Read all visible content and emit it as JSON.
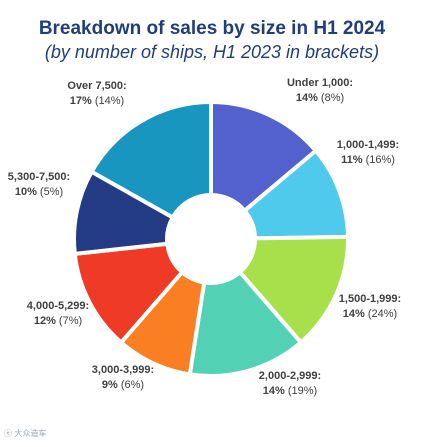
{
  "header": {
    "title": "Breakdown of sales by size in H1 2024",
    "subtitle": "(by number of ships, H1 2023 in brackets)"
  },
  "chart_data": {
    "type": "pie",
    "donut": true,
    "categories": [
      "Under 1,000:",
      "1,000-1,499:",
      "1,500-1,999:",
      "2,000-2,999:",
      "3,000-3,999:",
      "4,000-5,299:",
      "5,300-7,500:",
      "Over 7,500:"
    ],
    "series": [
      {
        "values": [
          14,
          11,
          14,
          14,
          9,
          12,
          10,
          17
        ]
      },
      {
        "values": [
          8,
          16,
          24,
          19,
          6,
          7,
          5,
          14
        ]
      }
    ],
    "data_labels": {
      "current": [
        "14%",
        "11%",
        "14%",
        "14%",
        "9%",
        "12%",
        "10%",
        "17%"
      ],
      "previous": [
        "(8%)",
        "(16%)",
        "(24%)",
        "(19%)",
        "(6%)",
        "(7%)",
        "(5%)",
        "(14%)"
      ]
    },
    "colors": [
      "#5361cf",
      "#4fc9ec",
      "#a8e04c",
      "#53d1b4",
      "#fa7f22",
      "#ef3b25",
      "#233a84",
      "#1996bf"
    ],
    "title": "Breakdown of sales by size in H1 2024",
    "legend": "none"
  },
  "watermark": {
    "text": "ⓔ 大众造车"
  }
}
